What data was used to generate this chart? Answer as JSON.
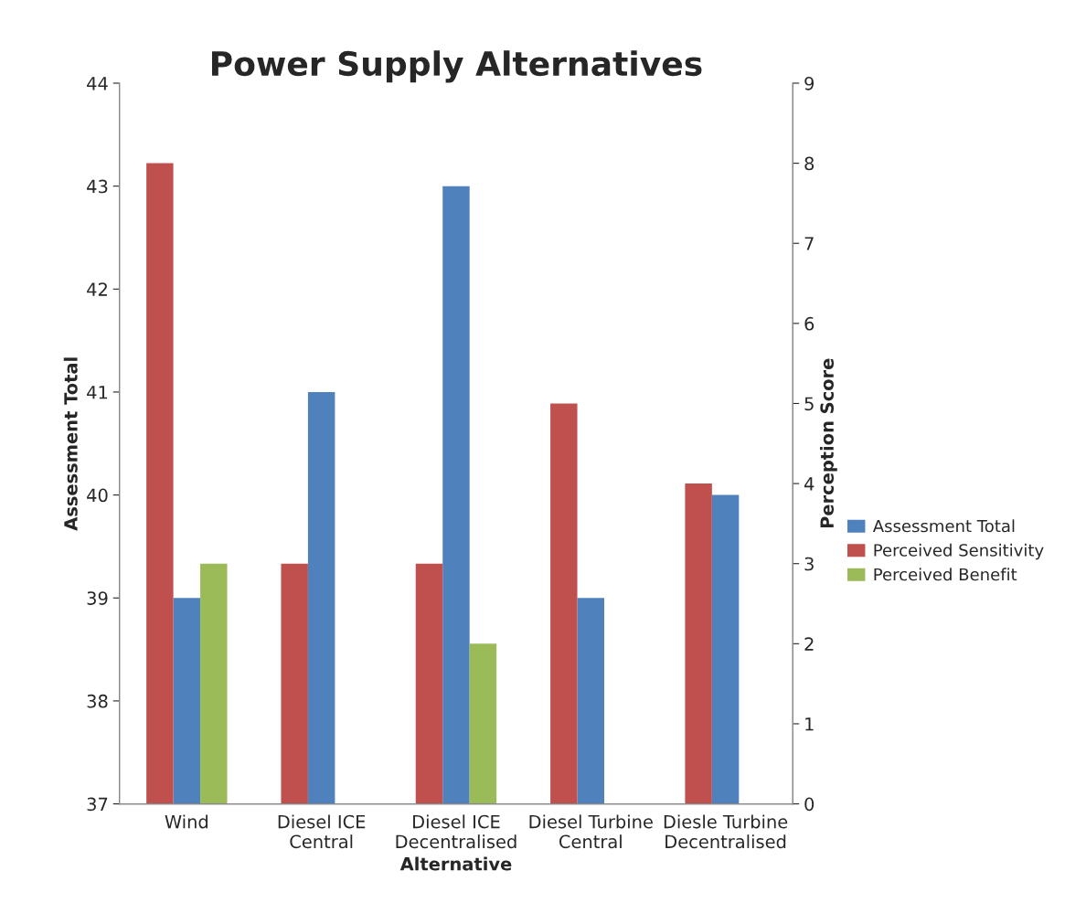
{
  "chart_data": {
    "type": "bar",
    "title": "Power Supply Alternatives",
    "xlabel": "Alternative",
    "ylabel": "Assessment Total",
    "y2label": "Perception Score",
    "categories": [
      "Wind",
      "Diesel ICE\nCentral",
      "Diesel ICE\nDecentralised",
      "Diesel Turbine\nCentral",
      "Diesle Turbine\nDecentralised"
    ],
    "series": [
      {
        "name": "Assessment Total",
        "color": "#4f81bd",
        "values": [
          39,
          41,
          43,
          39,
          40
        ]
      },
      {
        "name": "Perceived Sensitivity",
        "color": "#c0504d",
        "values": [
          8,
          3,
          3,
          5,
          4
        ],
        "axis": "y2"
      },
      {
        "name": "Perceived Benefit",
        "color": "#9bbb59",
        "values": [
          3,
          null,
          2,
          null,
          null
        ],
        "axis": "y2"
      }
    ],
    "ylim": [
      37,
      44
    ],
    "yticks": [
      37,
      38,
      39,
      40,
      41,
      42,
      43,
      44
    ],
    "y2lim": [
      0,
      9
    ],
    "y2ticks": [
      0,
      1,
      2,
      3,
      4,
      5,
      6,
      7,
      8,
      9
    ],
    "grid": false,
    "legend": "right"
  }
}
